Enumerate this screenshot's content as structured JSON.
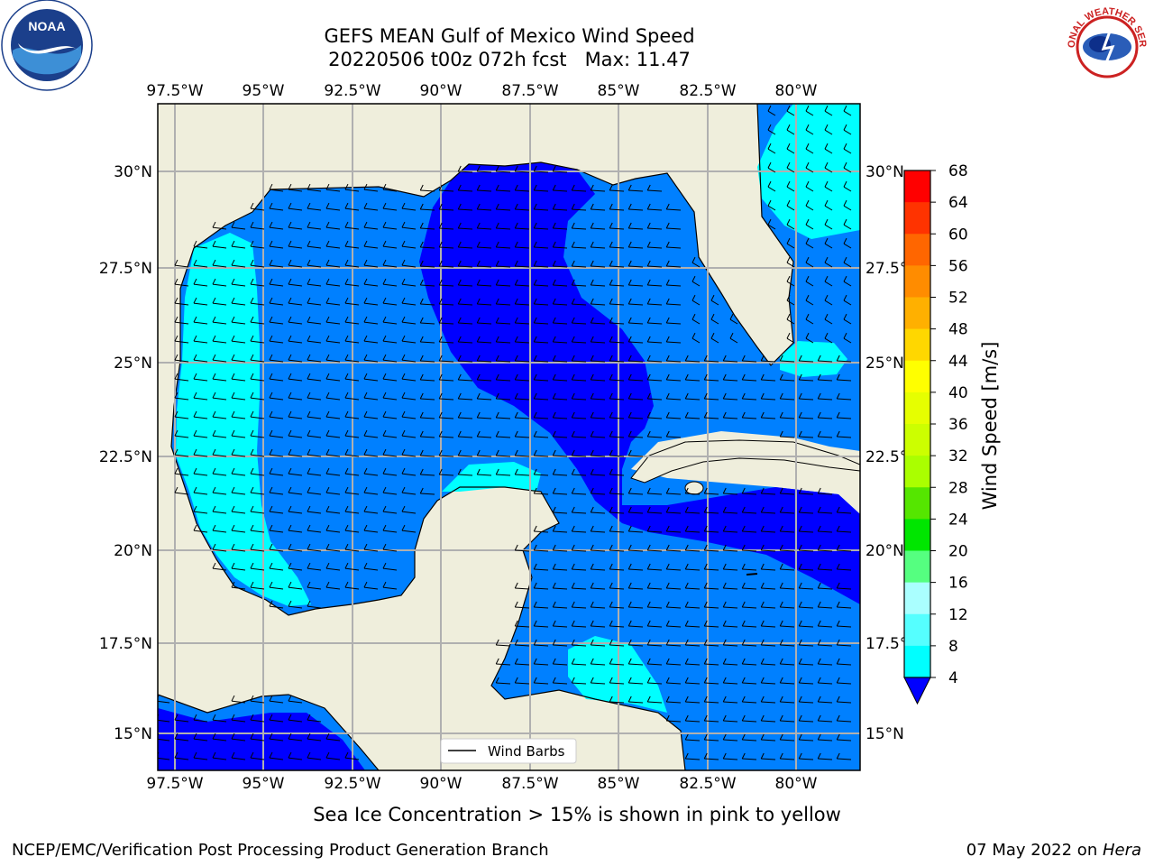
{
  "header": {
    "title_line1": "GEFS MEAN Gulf of Mexico Wind Speed",
    "title_line2": "20220506 t00z 072h fcst   Max: 11.47"
  },
  "map": {
    "lon_labels": [
      "97.5°W",
      "95°W",
      "92.5°W",
      "90°W",
      "87.5°W",
      "85°W",
      "82.5°W",
      "80°W"
    ],
    "lat_labels_left": [
      "30°N",
      "27.5°N",
      "25°N",
      "22.5°N",
      "20°N",
      "17.5°N",
      "15°N"
    ],
    "lat_labels_right": [
      "30°N",
      "27.5°",
      "25°N",
      "22.5°",
      "20°N",
      "17.5°",
      "15°N"
    ],
    "legend_label": "Wind Barbs",
    "colors": {
      "land": "#efeedc",
      "wind_4_8": "#0080ff",
      "wind_below_4": "#0000ff",
      "wind_8_12": "#00ffff",
      "grid": "#b0b0b0"
    }
  },
  "colorbar": {
    "label": "Wind Speed [m/s]",
    "ticks": [
      "68",
      "64",
      "60",
      "56",
      "52",
      "48",
      "44",
      "40",
      "36",
      "32",
      "28",
      "24",
      "20",
      "16",
      "12",
      "8",
      "4"
    ],
    "colors": [
      "#ff0000",
      "#ff3300",
      "#ff6600",
      "#ff8c00",
      "#ffb000",
      "#ffd700",
      "#ffff00",
      "#e6ff00",
      "#ccff00",
      "#aaff00",
      "#55e600",
      "#00e600",
      "#55ff80",
      "#aaffff",
      "#55ffff",
      "#00ffff",
      "#0080ff"
    ],
    "extend_color": "#0000ff"
  },
  "caption": "Sea Ice Concentration > 15% is shown in pink to yellow",
  "footer": {
    "left": "NCEP/EMC/Verification Post Processing Product Generation Branch",
    "right_date": "07 May 2022 on ",
    "right_machine": "Hera"
  },
  "logos": {
    "noaa_text": "NOAA",
    "nws_text": "NATIONAL WEATHER SERVICE"
  }
}
